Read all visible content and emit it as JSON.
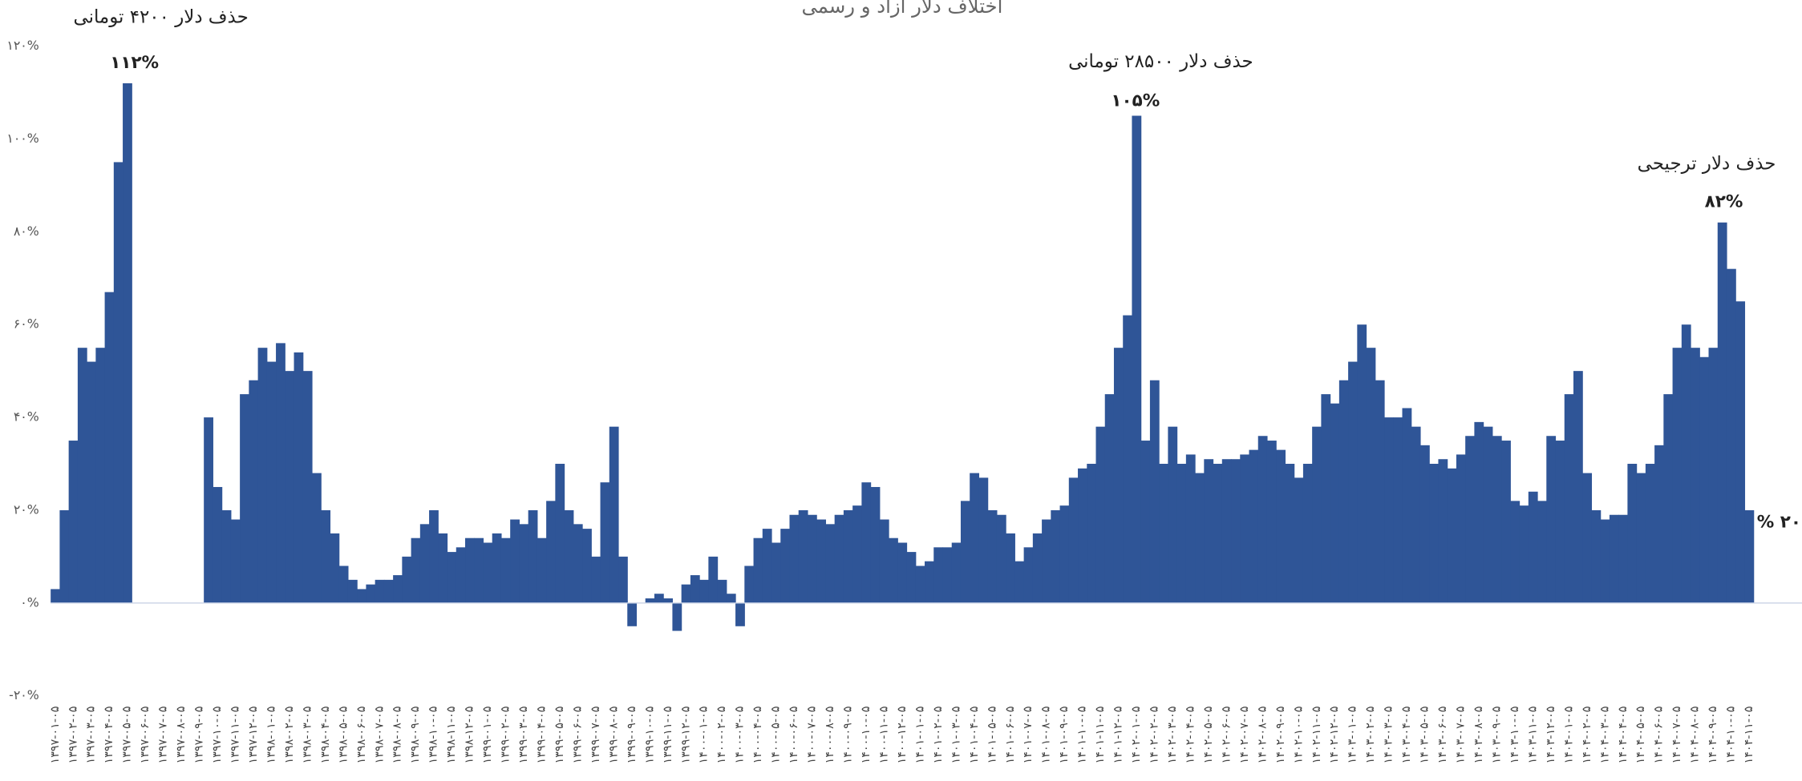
{
  "chart_data": {
    "type": "bar",
    "title": "اختلاف دلار آزاد و رسمی",
    "color": "#2f5597",
    "ylim": [
      -20,
      120
    ],
    "yticks": [
      {
        "value": -20,
        "label": "-۲۰%"
      },
      {
        "value": 0,
        "label": "۰%"
      },
      {
        "value": 20,
        "label": "۲۰%"
      },
      {
        "value": 40,
        "label": "۴۰%"
      },
      {
        "value": 60,
        "label": "۶۰%"
      },
      {
        "value": 80,
        "label": "۸۰%"
      },
      {
        "value": 100,
        "label": "۱۰۰%"
      },
      {
        "value": 120,
        "label": "۱۲۰%"
      }
    ],
    "annotations": [
      {
        "text": "حذف دلار ۴۲۰۰ تومانی",
        "value_label": "۱۱۲%"
      },
      {
        "text": "حذف دلار ۲۸۵۰۰ تومانی",
        "value_label": "۱۰۵%"
      },
      {
        "text": "حذف دلار ترجیحی",
        "value_label": "۸۲%"
      },
      {
        "value_label": "۲۰ %"
      }
    ],
    "categories": [
      "۱۳۹۷-۰۱-۰۵",
      null,
      "۱۳۹۷-۰۲-۰۵",
      null,
      "۱۳۹۷-۰۳-۰۵",
      null,
      "۱۳۹۷-۰۴-۰۵",
      null,
      "۱۳۹۷-۰۵-۰۵",
      null,
      "۱۳۹۷-۰۶-۰۵",
      null,
      "۱۳۹۷-۰۷-۰۵",
      null,
      "۱۳۹۷-۰۸-۰۵",
      null,
      "۱۳۹۷-۰۹-۰۵",
      null,
      "۱۳۹۷-۱۰-۰۵",
      null,
      "۱۳۹۷-۱۱-۰۵",
      null,
      "۱۳۹۷-۱۲-۰۵",
      null,
      "۱۳۹۸-۰۱-۰۵",
      null,
      "۱۳۹۸-۰۲-۰۵",
      null,
      "۱۳۹۸-۰۳-۰۵",
      null,
      "۱۳۹۸-۰۴-۰۵",
      null,
      "۱۳۹۸-۰۵-۰۵",
      null,
      "۱۳۹۸-۰۶-۰۵",
      null,
      "۱۳۹۸-۰۷-۰۵",
      null,
      "۱۳۹۸-۰۸-۰۵",
      null,
      "۱۳۹۸-۰۹-۰۵",
      null,
      "۱۳۹۸-۱۰-۰۵",
      null,
      "۱۳۹۸-۱۱-۰۵",
      null,
      "۱۳۹۸-۱۲-۰۵",
      null,
      "۱۳۹۹-۰۱-۰۵",
      null,
      "۱۳۹۹-۰۲-۰۵",
      null,
      "۱۳۹۹-۰۳-۰۵",
      null,
      "۱۳۹۹-۰۴-۰۵",
      null,
      "۱۳۹۹-۰۵-۰۵",
      null,
      "۱۳۹۹-۰۶-۰۵",
      null,
      "۱۳۹۹-۰۷-۰۵",
      null,
      "۱۳۹۹-۰۸-۰۵",
      null,
      "۱۳۹۹-۰۹-۰۵",
      null,
      "۱۳۹۹-۱۰-۰۵",
      null,
      "۱۳۹۹-۱۱-۰۵",
      null,
      "۱۳۹۹-۱۲-۰۵",
      null,
      "۱۴۰۰-۰۱-۰۵",
      null,
      "۱۴۰۰-۰۲-۰۵",
      null,
      "۱۴۰۰-۰۳-۰۵",
      null,
      "۱۴۰۰-۰۴-۰۵",
      null,
      "۱۴۰۰-۰۵-۰۵",
      null,
      "۱۴۰۰-۰۶-۰۵",
      null,
      "۱۴۰۰-۰۷-۰۵",
      null,
      "۱۴۰۰-۰۸-۰۵",
      null,
      "۱۴۰۰-۰۹-۰۵",
      null,
      "۱۴۰۰-۱۰-۰۵",
      null,
      "۱۴۰۰-۱۱-۰۵",
      null,
      "۱۴۰۰-۱۲-۰۵",
      null,
      "۱۴۰۱-۰۱-۰۵",
      null,
      "۱۴۰۱-۰۲-۰۵",
      null,
      "۱۴۰۱-۰۳-۰۵",
      null,
      "۱۴۰۱-۰۴-۰۵",
      null,
      "۱۴۰۱-۰۵-۰۵",
      null,
      "۱۴۰۱-۰۶-۰۵",
      null,
      "۱۴۰۱-۰۷-۰۵",
      null,
      "۱۴۰۱-۰۸-۰۵",
      null,
      "۱۴۰۱-۰۹-۰۵",
      null,
      "۱۴۰۱-۱۰-۰۵",
      null,
      "۱۴۰۱-۱۱-۰۵",
      null,
      "۱۴۰۱-۱۲-۰۵",
      null,
      "۱۴۰۲-۰۱-۰۵",
      null,
      "۱۴۰۲-۰۲-۰۵",
      null,
      "۱۴۰۲-۰۳-۰۵",
      null,
      "۱۴۰۲-۰۴-۰۵",
      null,
      "۱۴۰۲-۰۵-۰۵",
      null,
      "۱۴۰۲-۰۶-۰۵",
      null,
      "۱۴۰۲-۰۷-۰۵",
      null,
      "۱۴۰۲-۰۸-۰۵",
      null,
      "۱۴۰۲-۰۹-۰۵",
      null,
      "۱۴۰۲-۱۰-۰۵",
      null,
      "۱۴۰۲-۱۱-۰۵",
      null,
      "۱۴۰۲-۱۲-۰۵",
      null,
      "۱۴۰۳-۰۱-۰۵",
      null,
      "۱۴۰۳-۰۲-۰۵",
      null,
      "۱۴۰۳-۰۳-۰۵",
      null,
      "۱۴۰۳-۰۴-۰۵",
      null,
      "۱۴۰۳-۰۵-۰۵",
      null,
      "۱۴۰۳-۰۶-۰۵",
      null,
      "۱۴۰۳-۰۷-۰۵",
      null,
      "۱۴۰۳-۰۸-۰۵",
      null,
      "۱۴۰۳-۰۹-۰۵",
      null,
      "۱۴۰۳-۱۰-۰۵",
      null,
      "۱۴۰۳-۱۱-۰۵",
      null,
      "۱۴۰۳-۱۲-۰۵",
      null,
      "۱۴۰۴-۰۱-۰۵",
      null,
      "۱۴۰۴-۰۲-۰۵",
      null,
      "۱۴۰۴-۰۳-۰۵",
      null,
      "۱۴۰۴-۰۴-۰۵",
      null,
      "۱۴۰۴-۰۵-۰۵",
      null,
      "۱۴۰۴-۰۶-۰۵",
      null,
      "۱۴۰۴-۰۷-۰۵",
      null,
      "۱۴۰۴-۰۸-۰۵",
      null,
      "۱۴۰۴-۰۹-۰۵",
      null,
      "۱۴۰۴-۱۰-۰۵",
      null,
      "۱۴۰۴-۱۱-۰۵"
    ],
    "values": [
      3,
      20,
      35,
      55,
      52,
      55,
      67,
      95,
      112,
      null,
      null,
      null,
      null,
      null,
      null,
      null,
      null,
      40,
      25,
      20,
      18,
      45,
      48,
      55,
      52,
      56,
      50,
      54,
      50,
      28,
      20,
      15,
      8,
      5,
      3,
      4,
      5,
      5,
      6,
      10,
      14,
      17,
      20,
      15,
      11,
      12,
      14,
      14,
      13,
      15,
      14,
      18,
      17,
      20,
      14,
      22,
      30,
      20,
      17,
      16,
      10,
      26,
      38,
      10,
      -5,
      0,
      1,
      2,
      1,
      -6,
      4,
      6,
      5,
      10,
      5,
      2,
      -5,
      8,
      14,
      16,
      13,
      16,
      19,
      20,
      19,
      18,
      17,
      19,
      20,
      21,
      26,
      25,
      18,
      14,
      13,
      11,
      8,
      9,
      12,
      12,
      13,
      22,
      28,
      27,
      20,
      19,
      15,
      9,
      12,
      15,
      18,
      20,
      21,
      27,
      29,
      30,
      38,
      45,
      55,
      62,
      105,
      35,
      48,
      30,
      38,
      30,
      32,
      28,
      31,
      30,
      31,
      31,
      32,
      33,
      36,
      35,
      33,
      30,
      27,
      30,
      38,
      45,
      43,
      48,
      52,
      60,
      55,
      48,
      40,
      40,
      42,
      38,
      34,
      30,
      31,
      29,
      32,
      36,
      39,
      38,
      36,
      35,
      22,
      21,
      24,
      22,
      36,
      35,
      45,
      50,
      28,
      20,
      18,
      19,
      19,
      30,
      28,
      30,
      34,
      45,
      55,
      60,
      55,
      53,
      55,
      82,
      72,
      65,
      20
    ]
  }
}
